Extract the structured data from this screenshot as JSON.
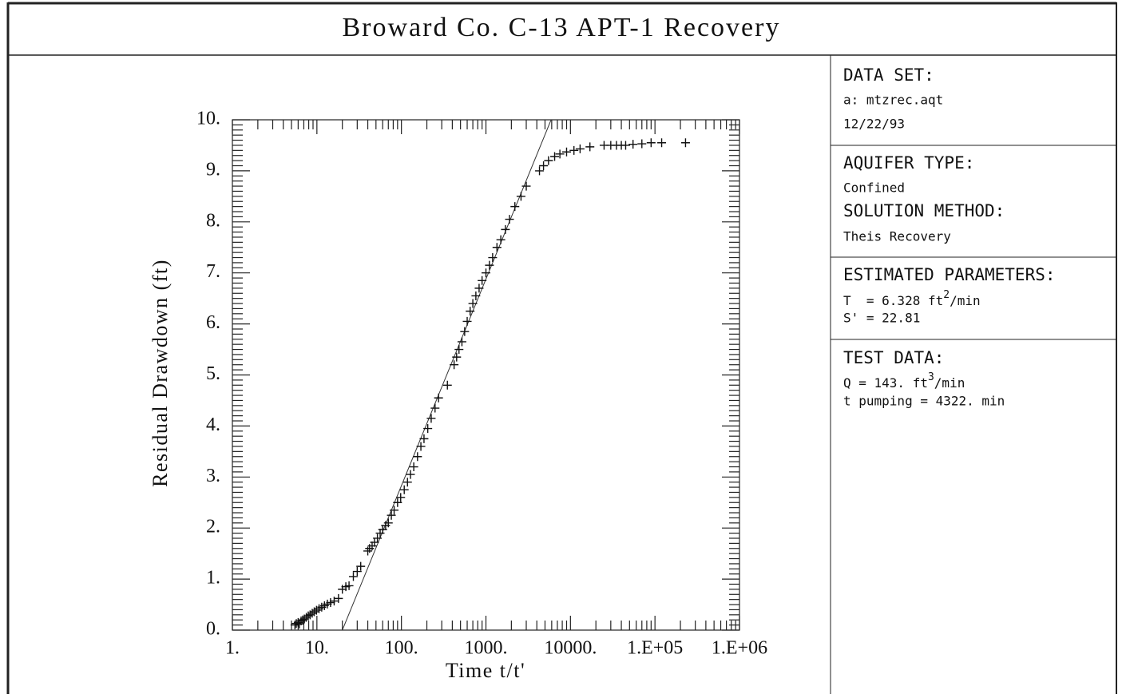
{
  "chart_data": {
    "type": "scatter",
    "title": "Broward Co. C-13 APT-1 Recovery",
    "xlabel": "Time t/t'",
    "ylabel": "Residual Drawdown (ft)",
    "xscale": "log",
    "xlim": [
      1,
      1000000
    ],
    "ylim": [
      0,
      10
    ],
    "xticks": [
      {
        "value": 1,
        "label": "1."
      },
      {
        "value": 10,
        "label": "10."
      },
      {
        "value": 100,
        "label": "100."
      },
      {
        "value": 1000,
        "label": "1000."
      },
      {
        "value": 10000,
        "label": "10000."
      },
      {
        "value": 100000,
        "label": "1.E+05"
      },
      {
        "value": 1000000,
        "label": "1.E+06"
      }
    ],
    "yticks": [
      {
        "value": 0,
        "label": "0."
      },
      {
        "value": 1,
        "label": "1."
      },
      {
        "value": 2,
        "label": "2."
      },
      {
        "value": 3,
        "label": "3."
      },
      {
        "value": 4,
        "label": "4."
      },
      {
        "value": 5,
        "label": "5."
      },
      {
        "value": 6,
        "label": "6."
      },
      {
        "value": 7,
        "label": "7."
      },
      {
        "value": 8,
        "label": "8."
      },
      {
        "value": 9,
        "label": "9."
      },
      {
        "value": 10,
        "label": "10."
      }
    ],
    "color": "#111111",
    "x": [
      5.5,
      5.7,
      6,
      6.2,
      6.5,
      6.8,
      7.1,
      7.5,
      7.9,
      8.3,
      8.8,
      9.3,
      9.9,
      10.6,
      11.4,
      12.3,
      13.3,
      14.5,
      16,
      18,
      20,
      22,
      24,
      27,
      30,
      33,
      40,
      42,
      45,
      48,
      52,
      56,
      60,
      65,
      70,
      76,
      82,
      90,
      98,
      108,
      118,
      128,
      140,
      155,
      170,
      185,
      205,
      225,
      250,
      275,
      350,
      420,
      450,
      480,
      520,
      560,
      600,
      650,
      700,
      760,
      830,
      900,
      1000,
      1100,
      1200,
      1350,
      1500,
      1700,
      1900,
      2200,
      2600,
      3000,
      4300,
      4800,
      5500,
      6500,
      7500,
      9000,
      11000,
      13000,
      17000,
      25000,
      30000,
      35000,
      40000,
      45000,
      55000,
      70000,
      90000,
      120000,
      230000
    ],
    "values": [
      0.1,
      0.13,
      0.15,
      0.12,
      0.18,
      0.2,
      0.22,
      0.25,
      0.28,
      0.3,
      0.33,
      0.36,
      0.39,
      0.42,
      0.45,
      0.48,
      0.51,
      0.54,
      0.57,
      0.62,
      0.8,
      0.85,
      0.87,
      1.05,
      1.15,
      1.25,
      1.55,
      1.6,
      1.65,
      1.72,
      1.8,
      1.9,
      1.97,
      2.05,
      2.1,
      2.25,
      2.35,
      2.5,
      2.6,
      2.75,
      2.9,
      3.05,
      3.2,
      3.4,
      3.6,
      3.75,
      3.95,
      4.15,
      4.35,
      4.55,
      4.8,
      5.2,
      5.35,
      5.5,
      5.65,
      5.85,
      6.05,
      6.25,
      6.4,
      6.55,
      6.7,
      6.85,
      7.0,
      7.15,
      7.3,
      7.5,
      7.65,
      7.85,
      8.05,
      8.3,
      8.5,
      8.7,
      9.0,
      9.1,
      9.2,
      9.28,
      9.33,
      9.37,
      9.4,
      9.43,
      9.47,
      9.5,
      9.5,
      9.5,
      9.5,
      9.5,
      9.52,
      9.53,
      9.55,
      9.55,
      9.55
    ],
    "fit_line": {
      "x": [
        20,
        5900
      ],
      "values": [
        0,
        10
      ]
    }
  },
  "info_panel": {
    "data_set": {
      "heading": "DATA SET:",
      "lines": [
        "a: mtzrec.aqt",
        "12/22/93"
      ]
    },
    "aquifer": {
      "heading": "AQUIFER TYPE:",
      "value": "Confined"
    },
    "solution": {
      "heading": "SOLUTION METHOD:",
      "value": "Theis Recovery"
    },
    "parameters": {
      "heading": "ESTIMATED PARAMETERS:",
      "T": [
        "T  = 6.328 ft",
        "2",
        "/min"
      ],
      "S": "S' = 22.81"
    },
    "test_data": {
      "heading": "TEST DATA:",
      "Q": [
        "Q = 143. ft",
        "3",
        "/min"
      ],
      "t": "t pumping = 4322. min"
    }
  }
}
